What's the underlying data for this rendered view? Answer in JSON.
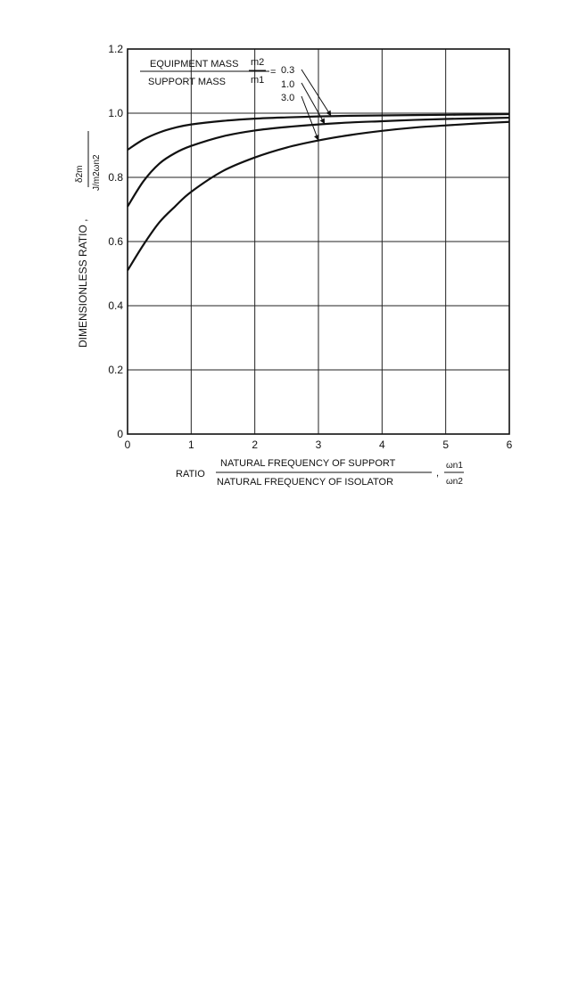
{
  "chart_data": {
    "type": "line",
    "title": "",
    "xlabel": {
      "prefix": "RATIO",
      "numerator": "NATURAL FREQUENCY OF SUPPORT",
      "denominator": "NATURAL FREQUENCY OF ISOLATOR",
      "separator": ",",
      "symbol_numerator": "ωn1",
      "symbol_denominator": "ωn2"
    },
    "ylabel": {
      "text": "DIMENSIONLESS RATIO ,",
      "symbol_numerator": "δ2m",
      "symbol_denominator": "J/m2ωn2"
    },
    "xlim": [
      0,
      6
    ],
    "ylim": [
      0,
      1.2
    ],
    "x_ticks": [
      "0",
      "1",
      "2",
      "3",
      "4",
      "5",
      "6"
    ],
    "y_ticks": [
      "0",
      "0.2",
      "0.4",
      "0.6",
      "0.8",
      "1.0",
      "1.2"
    ],
    "grid": true,
    "legend": {
      "placement": "top-left",
      "numerator": "EQUIPMENT MASS",
      "denominator": "SUPPORT MASS",
      "ratio_numerator": "m2",
      "ratio_denominator": "m1",
      "equals": "=",
      "labels": [
        "0.3",
        "1.0",
        "3.0"
      ]
    },
    "x": [
      0,
      0.25,
      0.5,
      0.75,
      1,
      1.5,
      2,
      2.5,
      3,
      3.5,
      4,
      4.5,
      5,
      5.5,
      6
    ],
    "series": [
      {
        "label": "0.3",
        "values": [
          0.886,
          0.918,
          0.94,
          0.955,
          0.965,
          0.976,
          0.983,
          0.987,
          0.99,
          0.992,
          0.993,
          0.994,
          0.995,
          0.996,
          0.997
        ]
      },
      {
        "label": "1.0",
        "values": [
          0.709,
          0.788,
          0.843,
          0.876,
          0.898,
          0.928,
          0.946,
          0.957,
          0.965,
          0.971,
          0.975,
          0.979,
          0.982,
          0.984,
          0.986
        ]
      },
      {
        "label": "3.0",
        "values": [
          0.51,
          0.59,
          0.66,
          0.71,
          0.755,
          0.82,
          0.862,
          0.893,
          0.915,
          0.932,
          0.945,
          0.955,
          0.962,
          0.968,
          0.973
        ]
      }
    ],
    "colors": {
      "line": "#111111",
      "grid": "#222222",
      "background": "#ffffff"
    }
  }
}
